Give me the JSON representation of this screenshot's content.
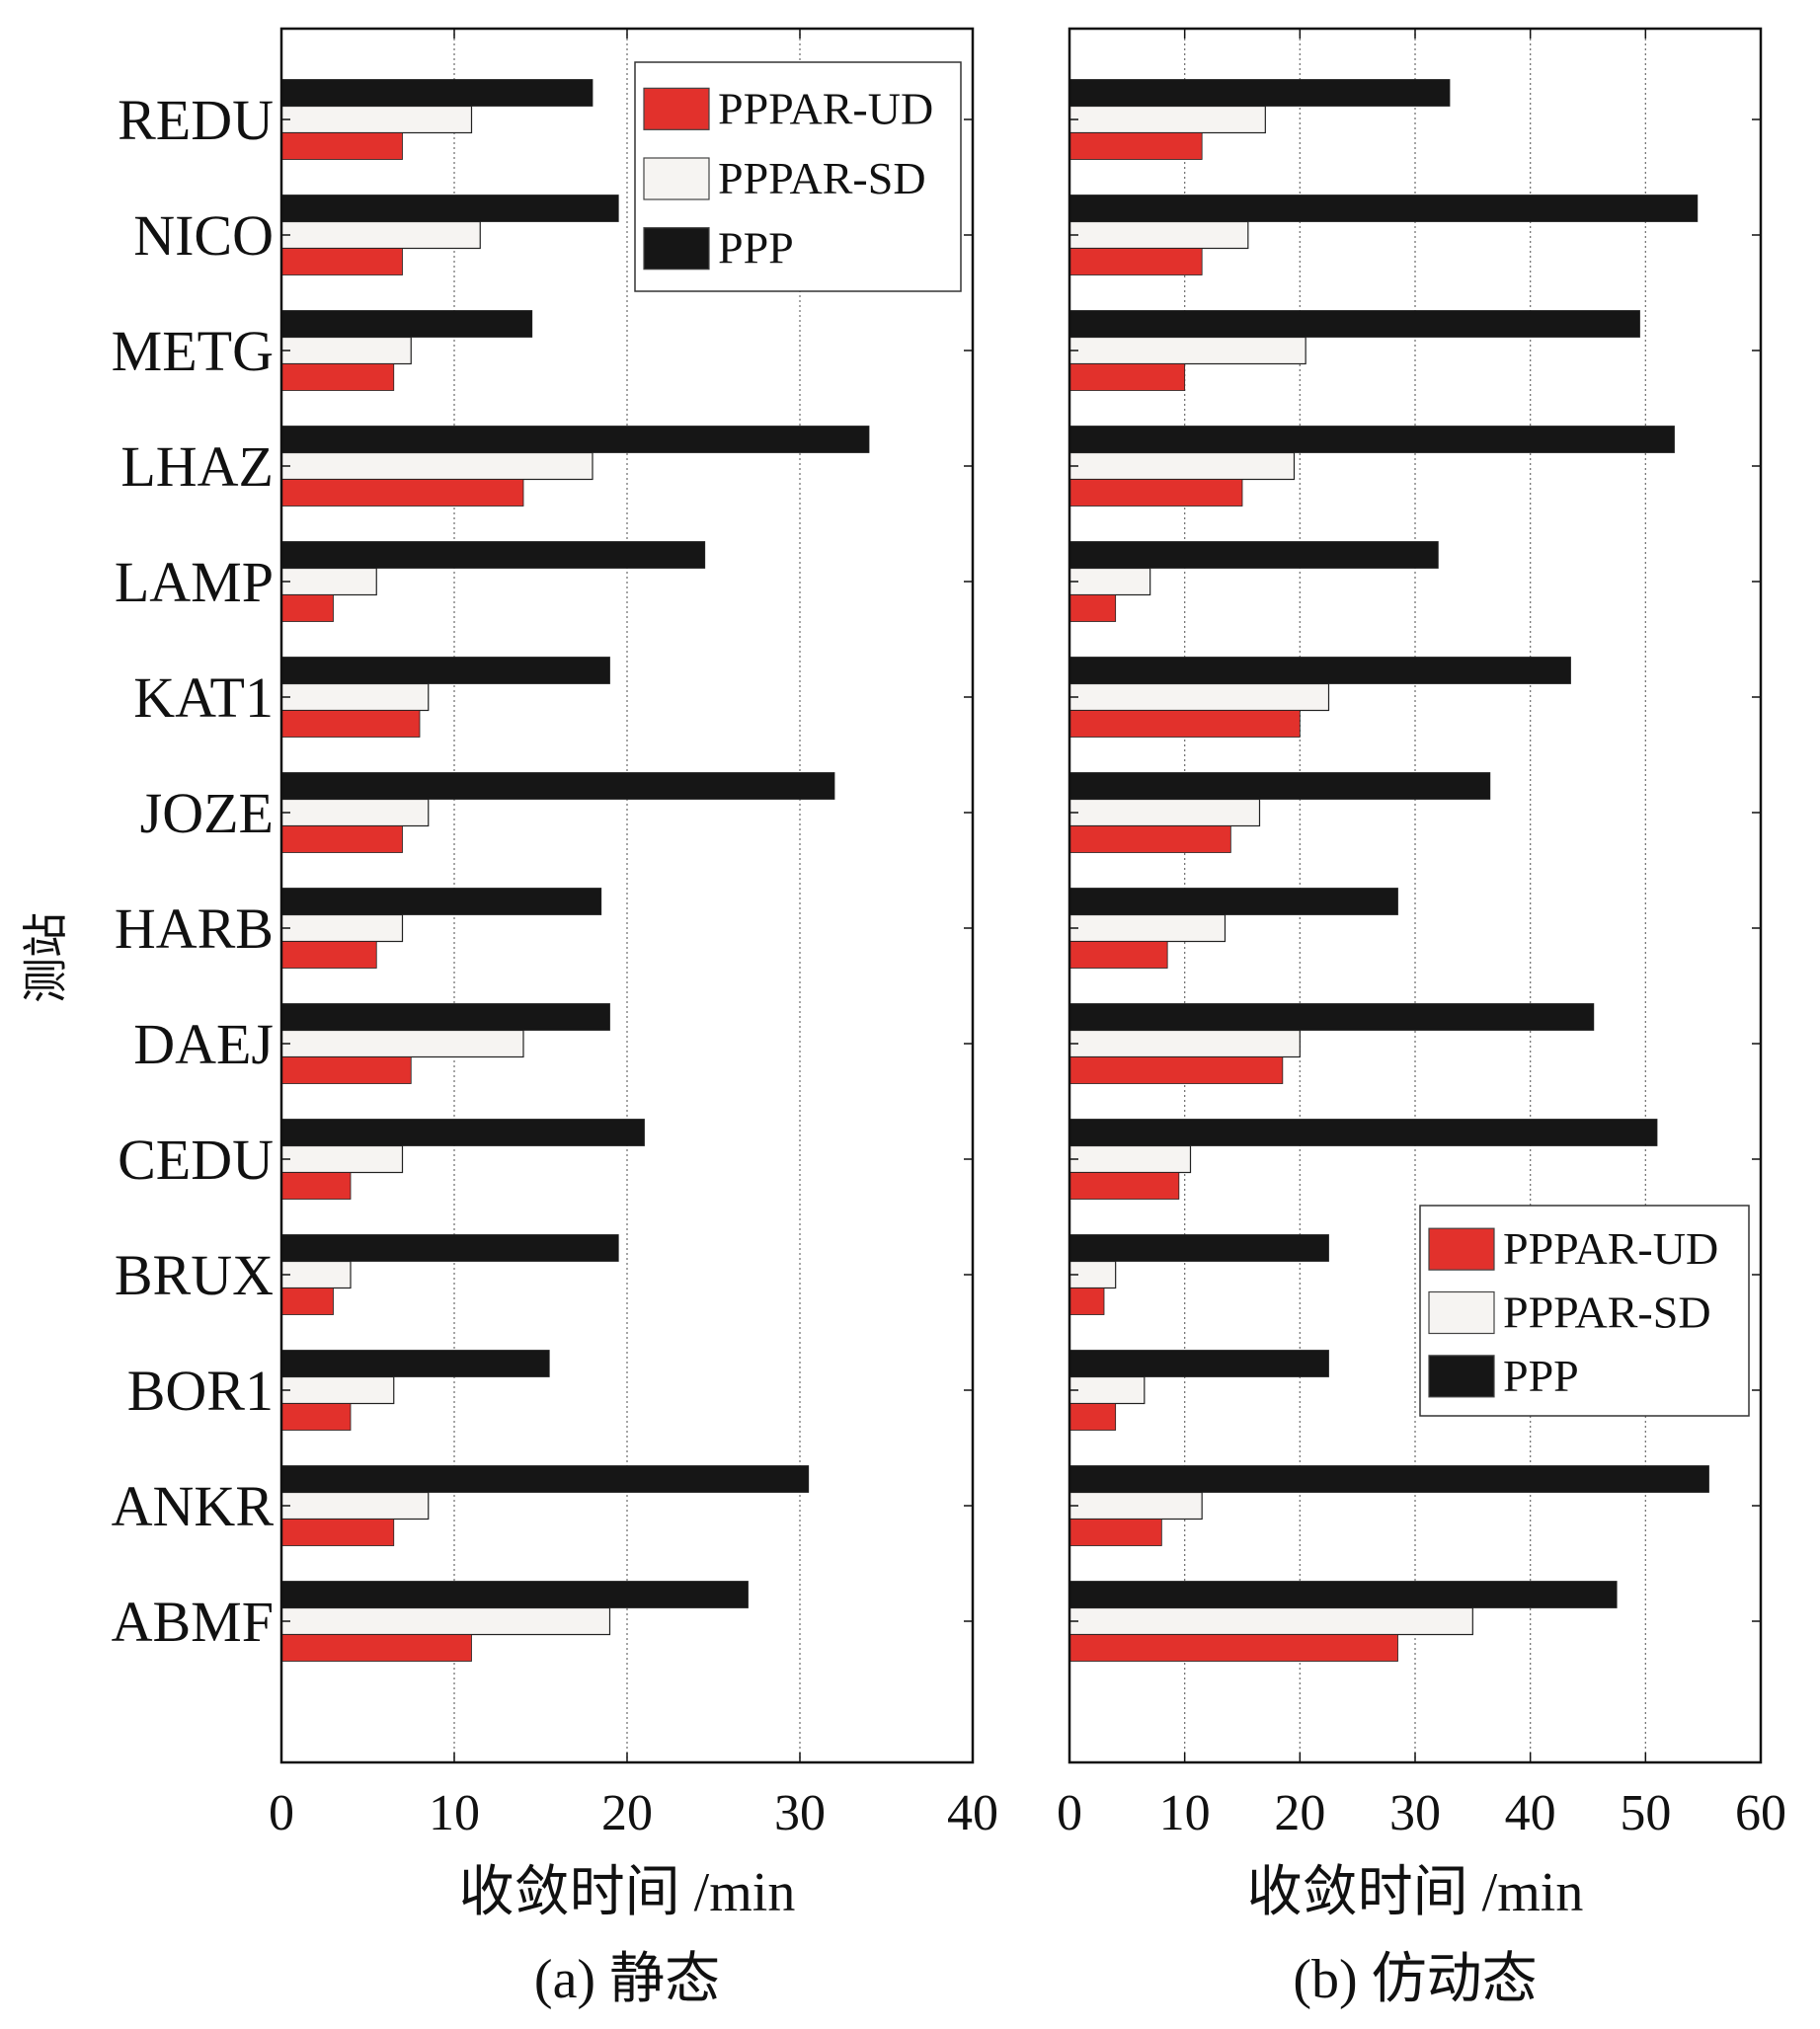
{
  "colors": {
    "PPPAR-UD": "#e2312c",
    "PPPAR-SD": "#f6f4f2",
    "PPP": "#161616",
    "axis": "#111111",
    "grid": "#777777"
  },
  "chart_data": [
    {
      "type": "bar",
      "orientation": "horizontal",
      "caption": "(a) 静态",
      "xlabel": "收敛时间 /min",
      "ylabel": "测站",
      "xlim": [
        0,
        40
      ],
      "xticks": [
        0,
        10,
        20,
        30,
        40
      ],
      "grid": "vertical dotted",
      "legend_position": "top-right",
      "categories": [
        "REDU",
        "NICO",
        "METG",
        "LHAZ",
        "LAMP",
        "KAT1",
        "JOZE",
        "HARB",
        "DAEJ",
        "CEDU",
        "BRUX",
        "BOR1",
        "ANKR",
        "ABMF"
      ],
      "series": [
        {
          "name": "PPP",
          "values": [
            18,
            19.5,
            14.5,
            34,
            24.5,
            19,
            32,
            18.5,
            19,
            21,
            19.5,
            15.5,
            30.5,
            27
          ]
        },
        {
          "name": "PPPAR-SD",
          "values": [
            11,
            11.5,
            7.5,
            18,
            5.5,
            8.5,
            8.5,
            7,
            14,
            7,
            4,
            6.5,
            8.5,
            19
          ]
        },
        {
          "name": "PPPAR-UD",
          "values": [
            7,
            7,
            6.5,
            14,
            3,
            8,
            7,
            5.5,
            7.5,
            4,
            3,
            4,
            6.5,
            11
          ]
        }
      ]
    },
    {
      "type": "bar",
      "orientation": "horizontal",
      "caption": "(b) 仿动态",
      "xlabel": "收敛时间 /min",
      "ylabel": "",
      "xlim": [
        0,
        60
      ],
      "xticks": [
        0,
        10,
        20,
        30,
        40,
        50,
        60
      ],
      "grid": "vertical dotted",
      "legend_position": "bottom-right",
      "categories": [
        "REDU",
        "NICO",
        "METG",
        "LHAZ",
        "LAMP",
        "KAT1",
        "JOZE",
        "HARB",
        "DAEJ",
        "CEDU",
        "BRUX",
        "BOR1",
        "ANKR",
        "ABMF"
      ],
      "series": [
        {
          "name": "PPP",
          "values": [
            33,
            54.5,
            49.5,
            52.5,
            32,
            43.5,
            36.5,
            28.5,
            45.5,
            51,
            22.5,
            22.5,
            55.5,
            47.5
          ]
        },
        {
          "name": "PPPAR-SD",
          "values": [
            17,
            15.5,
            20.5,
            19.5,
            7,
            22.5,
            16.5,
            13.5,
            20,
            10.5,
            4,
            6.5,
            11.5,
            35
          ]
        },
        {
          "name": "PPPAR-UD",
          "values": [
            11.5,
            11.5,
            10,
            15,
            4,
            20,
            14,
            8.5,
            18.5,
            9.5,
            3,
            4,
            8,
            28.5
          ]
        }
      ]
    }
  ]
}
